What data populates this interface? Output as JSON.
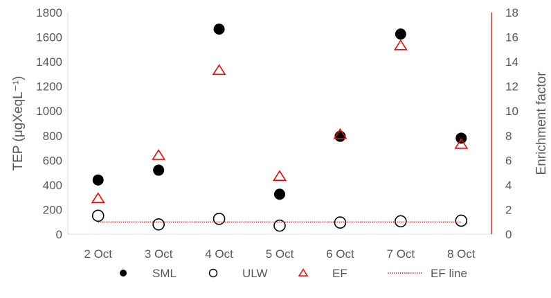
{
  "chart_data": {
    "type": "scatter",
    "title": "",
    "categories": [
      "2 Oct",
      "3 Oct",
      "4 Oct",
      "5 Oct",
      "6 Oct",
      "7 Oct",
      "8 Oct"
    ],
    "ylabel_left": "TEP (μgXeqL⁻¹)",
    "ylabel_right": "Enrichment factor",
    "ylim_left": [
      0,
      1800
    ],
    "ylim_right": [
      0,
      18
    ],
    "yticks_left": [
      0,
      200,
      400,
      600,
      800,
      1000,
      1200,
      1400,
      1600,
      1800
    ],
    "yticks_right": [
      0,
      2,
      4,
      6,
      8,
      10,
      12,
      14,
      16,
      18
    ],
    "grid": false,
    "legend_position": "bottom",
    "series": [
      {
        "name": "SML",
        "axis": "left",
        "marker": "filled-circle",
        "color": "#000000",
        "values": [
          440,
          520,
          1665,
          325,
          795,
          1625,
          780
        ]
      },
      {
        "name": "ULW",
        "axis": "left",
        "marker": "open-circle",
        "color": "#000000",
        "values": [
          150,
          80,
          125,
          70,
          95,
          105,
          110
        ]
      },
      {
        "name": "EF",
        "axis": "right",
        "marker": "open-triangle",
        "color": "#ff0000",
        "values": [
          2.9,
          6.4,
          13.3,
          4.7,
          8.1,
          15.3,
          7.3
        ]
      },
      {
        "name": "EF line",
        "axis": "right",
        "marker": "dotted-line",
        "color": "#c00000",
        "values": [
          1,
          1,
          1,
          1,
          1,
          1,
          1
        ]
      }
    ]
  }
}
